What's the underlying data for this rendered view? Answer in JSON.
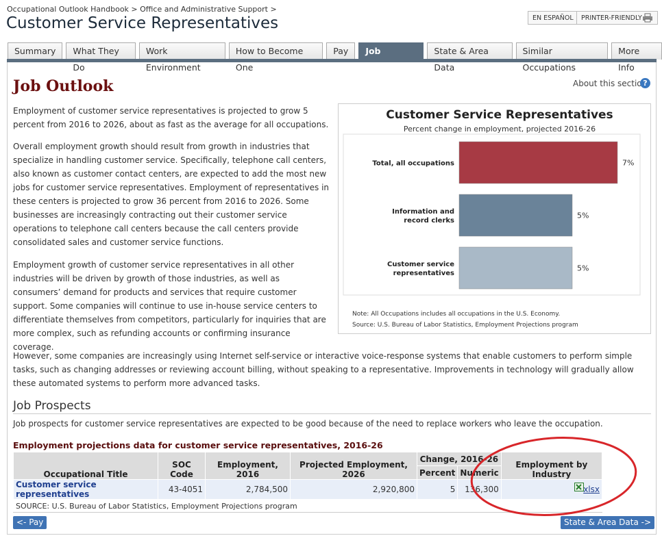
{
  "breadcrumb": "Occupational Outlook Handbook > Office and Administrative Support >",
  "header": {
    "title": "Customer Service Representatives",
    "buttons": [
      "EN ESPAÑOL",
      "PRINTER-FRIENDLY"
    ]
  },
  "tabs": [
    "Summary",
    "What They Do",
    "Work Environment",
    "How to Become One",
    "Pay",
    "Job Outlook",
    "State & Area Data",
    "Similar Occupations",
    "More Info"
  ],
  "active_tab": 5,
  "section": {
    "title": "Job Outlook",
    "about": "About this section",
    "paragraphs": [
      "Employment of customer service representatives is projected to grow 5 percent from 2016 to 2026, about as fast as the average for all occupations.",
      "Overall employment growth should result from growth in industries that specialize in handling customer service. Specifically, telephone call centers, also known as customer contact centers, are expected to add the most new jobs for customer service representatives. Employment of representatives in these centers is projected to grow 36 percent from 2016 to 2026. Some businesses are increasingly contracting out their customer service operations to telephone call centers because the call centers provide consolidated sales and customer service functions.",
      "Employment growth of customer service representatives in all other industries will be driven by growth of those industries, as well as consumers’ demand for products and services that require customer support. Some companies will continue to use in-house service centers to differentiate themselves from competitors, particularly for inquiries that are more complex, such as refunding accounts or confirming insurance coverage.",
      "However, some companies are increasingly using Internet self-service or interactive voice-response systems that enable customers to perform simple tasks, such as changing addresses or reviewing account billing, without speaking to a representative. Improvements in technology will gradually allow these automated systems to perform more advanced tasks."
    ]
  },
  "chart_data": {
    "type": "bar",
    "orientation": "horizontal",
    "title": "Customer Service Representatives",
    "subtitle": "Percent change in employment, projected 2016-26",
    "categories": [
      "Total, all occupations",
      "Information and record clerks",
      "Customer service representatives"
    ],
    "values": [
      7,
      5,
      5
    ],
    "value_labels": [
      "7%",
      "5%",
      "5%"
    ],
    "colors": [
      "#a73a44",
      "#6a8399",
      "#a9b9c7"
    ],
    "notes": [
      "Note: All Occupations includes all occupations in the U.S. Economy.",
      "Source: U.S. Bureau of Labor Statistics, Employment Projections program"
    ]
  },
  "prospects": {
    "title": "Job Prospects",
    "text": "Job prospects for customer service representatives are expected to be good because of the need to replace workers who leave the occupation."
  },
  "table": {
    "caption": "Employment projections data for customer service representatives, 2016-26",
    "headers": [
      "Occupational Title",
      "SOC Code",
      "Employment, 2016",
      "Projected Employment, 2026",
      "Change, 2016-26",
      "Employment by Industry"
    ],
    "subheaders": [
      "Percent",
      "Numeric"
    ],
    "rows": [
      [
        "Customer service representatives",
        "43-4051",
        "2,784,500",
        "2,920,800",
        "5",
        "136,300",
        "xlsx"
      ]
    ],
    "source": "SOURCE: U.S. Bureau of Labor Statistics, Employment Projections program"
  },
  "nav": {
    "prev": "<- Pay",
    "next": "State & Area Data ->"
  }
}
